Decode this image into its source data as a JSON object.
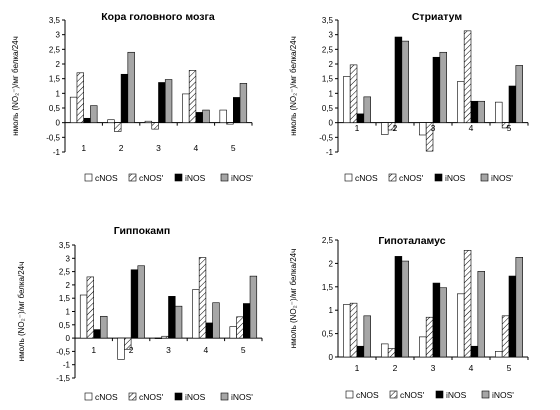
{
  "chart_data": [
    {
      "type": "bar",
      "title": "Кора головного мозга",
      "ylabel": "нмоль (NO₂⁻)/мг белка/24ч",
      "categories": [
        "1",
        "2",
        "3",
        "4",
        "5"
      ],
      "ylim": [
        -1.0,
        3.5
      ],
      "yticks": [
        "3,5",
        "3",
        "2,5",
        "2",
        "1,5",
        "1",
        "0,5",
        "0",
        "-0,5",
        "-1"
      ],
      "series": [
        {
          "name": "cNOS",
          "values": [
            0.87,
            0.1,
            0.05,
            0.98,
            0.43
          ]
        },
        {
          "name": "cNOS'",
          "values": [
            1.7,
            -0.3,
            -0.22,
            1.78,
            -0.05
          ]
        },
        {
          "name": "iNOS",
          "values": [
            0.15,
            1.65,
            1.37,
            0.35,
            0.86
          ]
        },
        {
          "name": "iNOS'",
          "values": [
            0.58,
            2.4,
            1.47,
            0.43,
            1.34
          ]
        }
      ],
      "legend": "bottom",
      "grid": false
    },
    {
      "type": "bar",
      "title": "Стриатум",
      "ylabel": "нмоль (NO₂⁻)/мг белка/24ч",
      "categories": [
        "1",
        "2",
        "3",
        "4",
        "5"
      ],
      "ylim": [
        -1.0,
        3.5
      ],
      "yticks": [
        "3,5",
        "3",
        "2,5",
        "2",
        "1,5",
        "1",
        "0,5",
        "0",
        "-0,5",
        "-1"
      ],
      "series": [
        {
          "name": "cNOS",
          "values": [
            1.57,
            -0.4,
            -0.42,
            1.4,
            0.7
          ]
        },
        {
          "name": "cNOS'",
          "values": [
            1.97,
            -0.25,
            -0.97,
            3.13,
            -0.18
          ]
        },
        {
          "name": "iNOS",
          "values": [
            0.3,
            2.92,
            2.23,
            0.73,
            1.25
          ]
        },
        {
          "name": "iNOS'",
          "values": [
            0.88,
            2.78,
            2.4,
            0.73,
            1.95
          ]
        }
      ],
      "legend": "bottom",
      "grid": false
    },
    {
      "type": "bar",
      "title": "Гиппокамп",
      "ylabel": "нмоль (NO₂⁻)/мг белка/24ч",
      "categories": [
        "1",
        "2",
        "3",
        "4",
        "5"
      ],
      "ylim": [
        -1.5,
        3.5
      ],
      "yticks": [
        "3,5",
        "3",
        "2,5",
        "2",
        "1,5",
        "1",
        "0,5",
        "0",
        "-0,5",
        "-1",
        "-1,5"
      ],
      "series": [
        {
          "name": "cNOS",
          "values": [
            1.62,
            -0.8,
            0.0,
            1.82,
            0.43
          ]
        },
        {
          "name": "cNOS'",
          "values": [
            2.3,
            -0.42,
            0.07,
            3.03,
            0.8
          ]
        },
        {
          "name": "iNOS",
          "values": [
            0.32,
            2.57,
            1.57,
            0.57,
            1.3
          ]
        },
        {
          "name": "iNOS'",
          "values": [
            0.82,
            2.72,
            1.2,
            1.33,
            2.33
          ]
        }
      ],
      "legend": "bottom",
      "grid": false
    },
    {
      "type": "bar",
      "title": "Гипоталамус",
      "ylabel": "нмоль (NO₂⁻)/мг белка/24ч",
      "categories": [
        "1",
        "2",
        "3",
        "4",
        "5"
      ],
      "ylim": [
        0,
        2.5
      ],
      "yticks": [
        "2,5",
        "2",
        "1,5",
        "1",
        "0,5",
        "0"
      ],
      "series": [
        {
          "name": "cNOS",
          "values": [
            1.12,
            0.28,
            0.43,
            1.35,
            0.12
          ]
        },
        {
          "name": "cNOS'",
          "values": [
            1.15,
            0.18,
            0.85,
            2.28,
            0.88
          ]
        },
        {
          "name": "iNOS",
          "values": [
            0.23,
            2.15,
            1.58,
            0.23,
            1.73
          ]
        },
        {
          "name": "iNOS'",
          "values": [
            0.88,
            2.05,
            1.48,
            1.83,
            2.13
          ]
        }
      ],
      "legend": "bottom",
      "grid": false
    }
  ],
  "legend_labels": [
    "cNOS",
    "cNOS'",
    "iNOS",
    "iNOS'"
  ],
  "colors": {
    "cNOS": "#ffffff",
    "cNOS'": "hatch",
    "iNOS": "#000000",
    "iNOS'": "#a6a6a6"
  }
}
